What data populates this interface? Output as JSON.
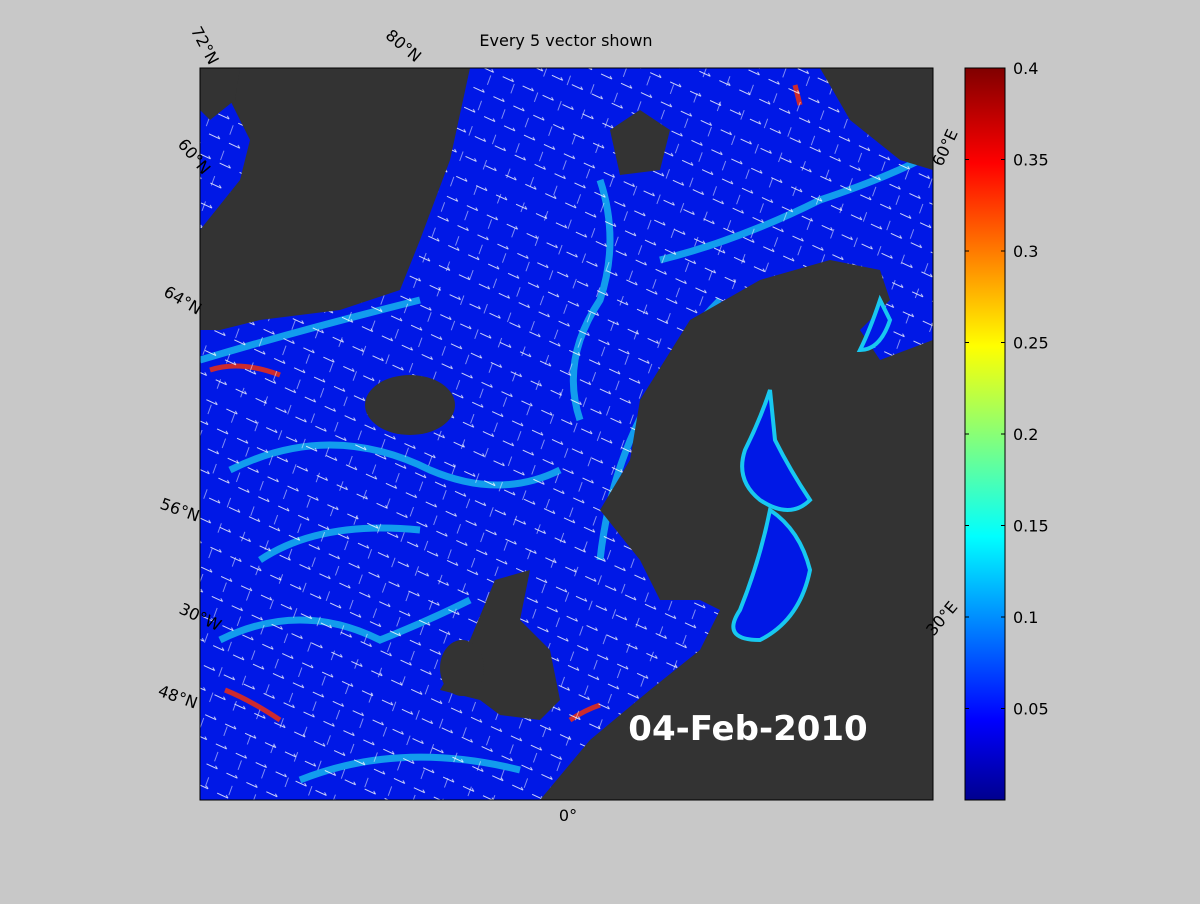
{
  "title": "Every 5 vector shown",
  "date_label": "04-Feb-2010",
  "graticule_labels": [
    "72°N",
    "80°N",
    "60°N",
    "64°N",
    "56°N",
    "30°W",
    "48°N",
    "0°",
    "30°E",
    "60°E"
  ],
  "colorbar": {
    "colormap": "jet",
    "ylim": [
      0,
      0.4
    ],
    "yticks": [
      0.05,
      0.1,
      0.15,
      0.2,
      0.25,
      0.3,
      0.35,
      0.4
    ]
  }
}
